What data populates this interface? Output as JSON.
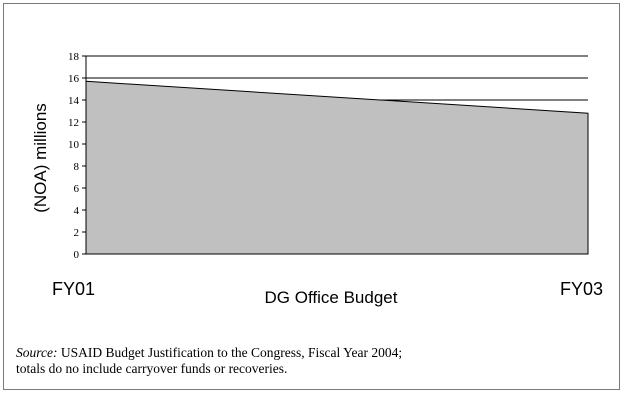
{
  "chart_data": {
    "type": "area",
    "categories": [
      "FY01",
      "FY03"
    ],
    "series": [
      {
        "values": [
          15.7,
          12.8
        ],
        "color": "#c0c0c0"
      }
    ],
    "xlabel": "DG Office Budget",
    "ylabel": "(NOA) millions",
    "ylim": [
      0,
      18
    ],
    "yticks": [
      0,
      2,
      4,
      6,
      8,
      10,
      12,
      14,
      16,
      18
    ],
    "gridlines": [
      14,
      16,
      18
    ],
    "grid": true,
    "legend": "none"
  },
  "note": {
    "source_label": "Source:",
    "source_text": " USAID Budget Justification to the Congress, Fiscal Year 2004;",
    "line2": "totals do no include carryover funds or recoveries."
  }
}
